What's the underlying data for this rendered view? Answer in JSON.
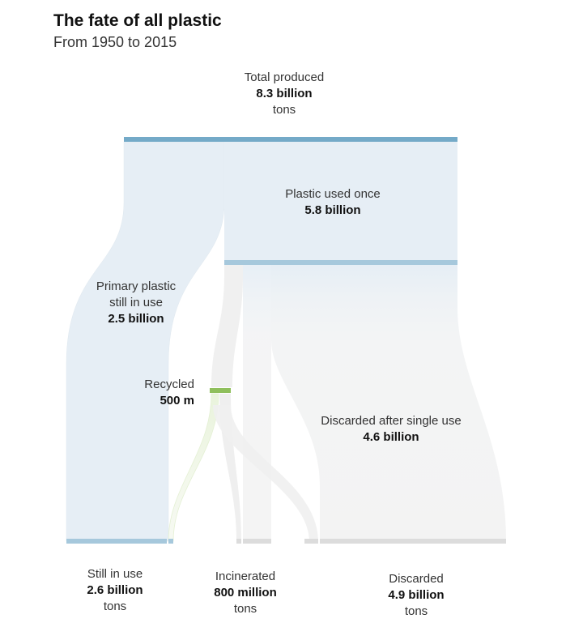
{
  "title": "The fate of all plastic",
  "subtitle": "From 1950 to 2015",
  "nodes": {
    "total": {
      "label": "Total produced",
      "value": "8.3 billion",
      "unit": "tons"
    },
    "once": {
      "label": "Plastic used once",
      "value": "5.8 billion"
    },
    "primary": {
      "label1": "Primary plastic",
      "label2": "still in use",
      "value": "2.5 billion"
    },
    "recycled": {
      "label": "Recycled",
      "value": "500 m"
    },
    "discarded_single": {
      "label": "Discarded after single use",
      "value": "4.6 billion"
    },
    "still": {
      "label": "Still in use",
      "value": "2.6 billion",
      "unit": "tons"
    },
    "incinerated": {
      "label": "Incinerated",
      "value": "800 million",
      "unit": "tons"
    },
    "discarded": {
      "label": "Discarded",
      "value": "4.9 billion",
      "unit": "tons"
    }
  },
  "flows_billion_tons": {
    "total_produced": 8.3,
    "primary_still_in_use": 2.5,
    "plastic_used_once": 5.8,
    "recycled": 0.5,
    "incinerated": 0.8,
    "discarded_after_single_use": 4.6,
    "still_in_use": 2.6,
    "discarded": 4.9
  },
  "colors": {
    "blue_bar": "#74aac8",
    "blue_fill": "#e6eef5",
    "grey_fill": "#eeeeee",
    "grey_bar": "#dcdcdc",
    "green_bar": "#8fbf5c",
    "green_fill": "#eef6e2"
  }
}
